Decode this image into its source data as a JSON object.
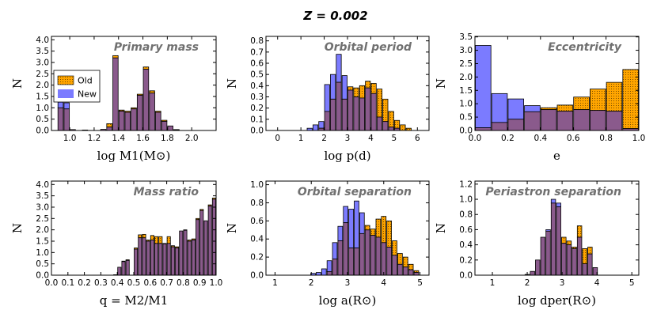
{
  "figure": {
    "title": "Z = 0.002"
  },
  "legend": {
    "entries": [
      {
        "label": "Old",
        "color": "#FFA500"
      },
      {
        "label": "New",
        "color": "#7B7BFF"
      }
    ]
  },
  "chart_data": [
    {
      "type": "bar",
      "title": "Primary mass",
      "xlabel": "log M1(M⊙)",
      "ylabel": "N",
      "xlim": [
        0.85,
        2.2
      ],
      "ylim": [
        0,
        4.15
      ],
      "xticks": [
        "1.0",
        "1.2",
        "1.4",
        "1.6",
        "1.8",
        "2.0"
      ],
      "yticks": [
        "0.0",
        "0.5",
        "1.0",
        "1.5",
        "2.0",
        "2.5",
        "3.0",
        "3.5",
        "4.0"
      ],
      "bin_width": 0.05,
      "x": [
        0.925,
        0.975,
        1.025,
        1.075,
        1.125,
        1.175,
        1.225,
        1.275,
        1.325,
        1.375,
        1.425,
        1.475,
        1.525,
        1.575,
        1.625,
        1.675,
        1.725,
        1.775,
        1.825,
        1.875,
        1.925,
        1.975,
        2.025,
        2.075,
        2.125
      ],
      "series": [
        {
          "name": "Old",
          "values": [
            1.0,
            0.95,
            0.04,
            0.0,
            0.02,
            0.0,
            0.0,
            0.05,
            0.3,
            3.3,
            0.9,
            0.85,
            1.0,
            1.6,
            2.8,
            1.75,
            0.85,
            0.45,
            0.2,
            0.04,
            0.0,
            0.0,
            0.0,
            0.0,
            0.0
          ]
        },
        {
          "name": "New",
          "values": [
            1.25,
            1.22,
            0.04,
            0.0,
            0.02,
            0.0,
            0.0,
            0.05,
            0.15,
            3.2,
            0.85,
            0.8,
            0.95,
            1.55,
            2.7,
            1.65,
            0.8,
            0.4,
            0.2,
            0.03,
            0.0,
            0.0,
            0.0,
            0.0,
            0.0
          ]
        }
      ]
    },
    {
      "type": "bar",
      "title": "Orbital period",
      "xlabel": "log p(d)",
      "ylabel": "N",
      "xlim": [
        -0.5,
        6.5
      ],
      "ylim": [
        0,
        0.84
      ],
      "xticks": [
        "0",
        "1",
        "2",
        "3",
        "4",
        "5",
        "6"
      ],
      "yticks": [
        "0.0",
        "0.1",
        "0.2",
        "0.3",
        "0.4",
        "0.5",
        "0.6",
        "0.7",
        "0.8"
      ],
      "bin_width": 0.25,
      "x": [
        1.375,
        1.625,
        1.875,
        2.125,
        2.375,
        2.625,
        2.875,
        3.125,
        3.375,
        3.625,
        3.875,
        4.125,
        4.375,
        4.625,
        4.875,
        5.125,
        5.375,
        5.625
      ],
      "series": [
        {
          "name": "Old",
          "values": [
            0.0,
            0.0,
            0.02,
            0.17,
            0.28,
            0.43,
            0.28,
            0.39,
            0.38,
            0.4,
            0.44,
            0.42,
            0.37,
            0.28,
            0.17,
            0.09,
            0.05,
            0.02
          ]
        },
        {
          "name": "New",
          "values": [
            0.02,
            0.05,
            0.08,
            0.41,
            0.5,
            0.68,
            0.49,
            0.36,
            0.3,
            0.29,
            0.38,
            0.33,
            0.12,
            0.08,
            0.03,
            0.02,
            0.0,
            0.0
          ]
        }
      ]
    },
    {
      "type": "bar",
      "title": "Eccentricity",
      "xlabel": "e",
      "ylabel": "N",
      "xlim": [
        0.0,
        1.0
      ],
      "ylim": [
        0,
        3.52
      ],
      "xticks": [
        "0.0",
        "0.2",
        "0.4",
        "0.6",
        "0.8",
        "1.0"
      ],
      "yticks": [
        "0.0",
        "0.5",
        "1.0",
        "1.5",
        "2.0",
        "2.5",
        "3.0",
        "3.5"
      ],
      "bin_width": 0.1,
      "x": [
        0.05,
        0.15,
        0.25,
        0.35,
        0.45,
        0.55,
        0.65,
        0.75,
        0.85,
        0.95
      ],
      "series": [
        {
          "name": "Old",
          "values": [
            0.1,
            0.3,
            0.42,
            0.7,
            0.85,
            0.95,
            1.25,
            1.55,
            1.8,
            2.28
          ]
        },
        {
          "name": "New",
          "values": [
            3.18,
            1.38,
            1.18,
            0.93,
            0.78,
            0.72,
            0.78,
            0.75,
            0.72,
            0.07
          ]
        }
      ]
    },
    {
      "type": "bar",
      "title": "Mass ratio",
      "xlabel": "q = M2/M1",
      "ylabel": "N",
      "xlim": [
        0.0,
        1.0
      ],
      "ylim": [
        0,
        4.15
      ],
      "xticks": [
        "0.0",
        "0.1",
        "0.2",
        "0.3",
        "0.4",
        "0.5",
        "0.6",
        "0.7",
        "0.8",
        "0.9",
        "1.0"
      ],
      "yticks": [
        "0.0",
        "0.5",
        "1.0",
        "1.5",
        "2.0",
        "2.5",
        "3.0",
        "3.5",
        "4.0"
      ],
      "bin_width": 0.025,
      "x": [
        0.0125,
        0.0375,
        0.0625,
        0.0875,
        0.1125,
        0.1375,
        0.1625,
        0.1875,
        0.2125,
        0.2375,
        0.2625,
        0.2875,
        0.3125,
        0.3375,
        0.3625,
        0.3875,
        0.4125,
        0.4375,
        0.4625,
        0.4875,
        0.5125,
        0.5375,
        0.5625,
        0.5875,
        0.6125,
        0.6375,
        0.6625,
        0.6875,
        0.7125,
        0.7375,
        0.7625,
        0.7875,
        0.8125,
        0.8375,
        0.8625,
        0.8875,
        0.9125,
        0.9375,
        0.9625,
        0.9875
      ],
      "series": [
        {
          "name": "Old",
          "values": [
            0.0,
            0.0,
            0.0,
            0.0,
            0.0,
            0.0,
            0.0,
            0.0,
            0.0,
            0.0,
            0.0,
            0.0,
            0.0,
            0.0,
            0.0,
            0.02,
            0.35,
            0.62,
            0.68,
            0.0,
            1.2,
            1.78,
            1.8,
            1.55,
            1.75,
            1.7,
            1.7,
            1.4,
            1.7,
            1.3,
            1.25,
            1.95,
            2.0,
            1.55,
            1.6,
            2.5,
            2.9,
            2.4,
            3.1,
            3.4
          ]
        },
        {
          "name": "New",
          "values": [
            0.0,
            0.0,
            0.0,
            0.0,
            0.0,
            0.0,
            0.0,
            0.0,
            0.0,
            0.0,
            0.0,
            0.0,
            0.0,
            0.0,
            0.0,
            0.02,
            0.35,
            0.6,
            0.65,
            0.0,
            1.15,
            1.65,
            1.65,
            1.5,
            1.55,
            1.4,
            1.4,
            1.38,
            1.4,
            1.25,
            1.2,
            1.95,
            1.98,
            1.5,
            1.55,
            2.45,
            2.85,
            2.4,
            3.05,
            3.35
          ]
        }
      ]
    },
    {
      "type": "bar",
      "title": "Orbital separation",
      "xlabel": "log a(R⊙)",
      "ylabel": "N",
      "xlim": [
        0.75,
        5.25
      ],
      "ylim": [
        0,
        1.04
      ],
      "xticks": [
        "1",
        "2",
        "3",
        "4",
        "5"
      ],
      "yticks": [
        "0.0",
        "0.2",
        "0.4",
        "0.6",
        "0.8",
        "1.0"
      ],
      "bin_width": 0.15,
      "x": [
        1.9,
        2.05,
        2.2,
        2.35,
        2.5,
        2.65,
        2.8,
        2.95,
        3.1,
        3.25,
        3.4,
        3.55,
        3.7,
        3.85,
        4.0,
        4.15,
        4.3,
        4.45,
        4.6,
        4.75,
        4.9
      ],
      "series": [
        {
          "name": "Old",
          "values": [
            0.0,
            0.0,
            0.0,
            0.0,
            0.04,
            0.18,
            0.38,
            0.58,
            0.3,
            0.3,
            0.46,
            0.55,
            0.51,
            0.62,
            0.65,
            0.6,
            0.38,
            0.24,
            0.2,
            0.12,
            0.05
          ]
        },
        {
          "name": "New",
          "values": [
            0.0,
            0.02,
            0.03,
            0.07,
            0.16,
            0.36,
            0.54,
            0.76,
            0.73,
            0.82,
            0.69,
            0.5,
            0.44,
            0.42,
            0.36,
            0.31,
            0.22,
            0.12,
            0.09,
            0.06,
            0.03
          ]
        }
      ]
    },
    {
      "type": "bar",
      "title": "Periastron separation",
      "xlabel": "log dper(R⊙)",
      "ylabel": "N",
      "xlim": [
        0.5,
        5.2
      ],
      "ylim": [
        0,
        1.24
      ],
      "xticks": [
        "1",
        "2",
        "3",
        "4",
        "5"
      ],
      "yticks": [
        "0.0",
        "0.2",
        "0.4",
        "0.6",
        "0.8",
        "1.0",
        "1.2"
      ],
      "bin_width": 0.15,
      "x": [
        1.85,
        2.0,
        2.15,
        2.3,
        2.45,
        2.6,
        2.75,
        2.9,
        3.05,
        3.2,
        3.35,
        3.5,
        3.65,
        3.8,
        3.95,
        4.1
      ],
      "series": [
        {
          "name": "Old",
          "values": [
            0.0,
            0.01,
            0.05,
            0.2,
            0.5,
            0.58,
            0.95,
            0.9,
            0.5,
            0.45,
            0.37,
            0.65,
            0.35,
            0.37,
            0.1,
            0.0
          ]
        },
        {
          "name": "New",
          "values": [
            0.0,
            0.01,
            0.05,
            0.2,
            0.5,
            0.6,
            1.0,
            0.95,
            0.42,
            0.4,
            0.35,
            0.5,
            0.15,
            0.28,
            0.1,
            0.0
          ]
        }
      ]
    }
  ]
}
